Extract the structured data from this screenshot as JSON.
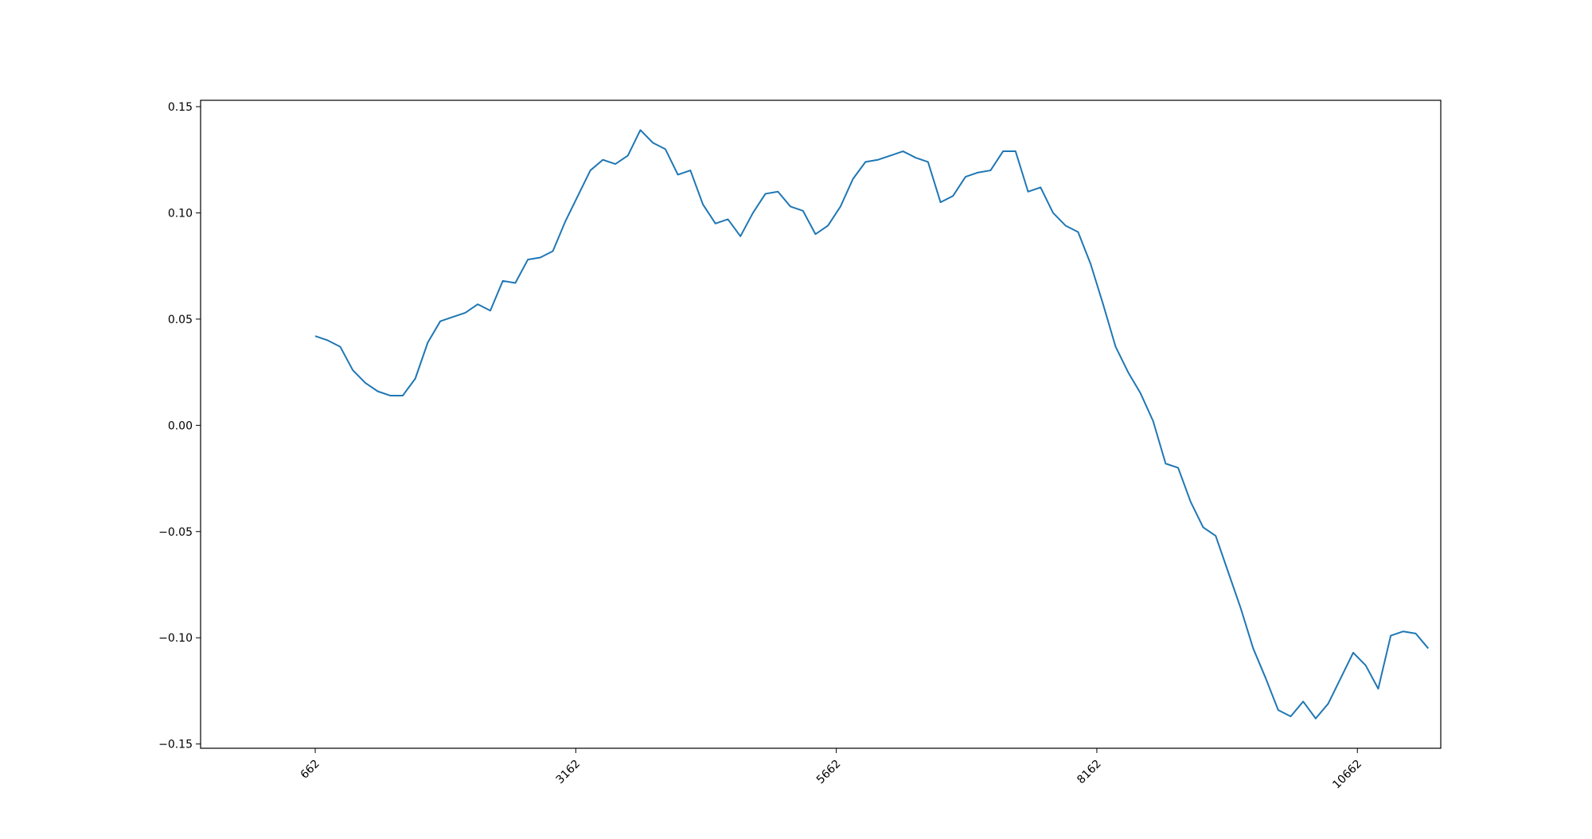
{
  "chart_data": {
    "type": "line",
    "title": "",
    "xlabel": "",
    "ylabel": "",
    "grid": false,
    "legend": "none",
    "xlim": [
      -1.1,
      10.8
    ],
    "ylim": [
      -0.152,
      0.153
    ],
    "xticks": {
      "positions": [
        0,
        2.5,
        5,
        7.5,
        10
      ],
      "labels": [
        "662",
        "3162",
        "5662",
        "8162",
        "10662"
      ]
    },
    "yticks": {
      "values": [
        0.15,
        0.1,
        0.05,
        0.0,
        -0.05,
        -0.1,
        -0.15
      ],
      "labels": [
        "0.15",
        "0.10",
        "0.05",
        "0.00",
        "−0.05",
        "−0.10",
        "−0.15"
      ]
    },
    "series": [
      {
        "color": "#1f77b4",
        "x": [
          0.0,
          0.12,
          0.24,
          0.36,
          0.48,
          0.6,
          0.72,
          0.84,
          0.96,
          1.08,
          1.2,
          1.32,
          1.44,
          1.56,
          1.68,
          1.8,
          1.92,
          2.04,
          2.16,
          2.28,
          2.4,
          2.52,
          2.64,
          2.76,
          2.88,
          3.0,
          3.12,
          3.24,
          3.36,
          3.48,
          3.6,
          3.72,
          3.84,
          3.96,
          4.08,
          4.2,
          4.32,
          4.44,
          4.56,
          4.68,
          4.8,
          4.92,
          5.04,
          5.16,
          5.28,
          5.4,
          5.52,
          5.64,
          5.76,
          5.88,
          6.0,
          6.12,
          6.24,
          6.36,
          6.48,
          6.6,
          6.72,
          6.84,
          6.96,
          7.08,
          7.2,
          7.32,
          7.44,
          7.56,
          7.68,
          7.8,
          7.92,
          8.04,
          8.16,
          8.28,
          8.4,
          8.52,
          8.64,
          8.76,
          8.88,
          9.0,
          9.12,
          9.24,
          9.36,
          9.48,
          9.6,
          9.72,
          9.84,
          9.96,
          10.08,
          10.2,
          10.32,
          10.44,
          10.56,
          10.68
        ],
        "y": [
          0.042,
          0.04,
          0.037,
          0.026,
          0.02,
          0.016,
          0.014,
          0.014,
          0.022,
          0.039,
          0.049,
          0.051,
          0.053,
          0.057,
          0.054,
          0.068,
          0.067,
          0.078,
          0.079,
          0.082,
          0.096,
          0.108,
          0.12,
          0.125,
          0.123,
          0.127,
          0.139,
          0.133,
          0.13,
          0.118,
          0.12,
          0.104,
          0.095,
          0.097,
          0.089,
          0.1,
          0.109,
          0.11,
          0.103,
          0.101,
          0.09,
          0.094,
          0.103,
          0.116,
          0.124,
          0.125,
          0.127,
          0.129,
          0.126,
          0.124,
          0.105,
          0.108,
          0.117,
          0.119,
          0.12,
          0.129,
          0.129,
          0.11,
          0.112,
          0.1,
          0.094,
          0.091,
          0.076,
          0.057,
          0.037,
          0.025,
          0.015,
          0.002,
          -0.018,
          -0.02,
          -0.036,
          -0.048,
          -0.052,
          -0.069,
          -0.086,
          -0.105,
          -0.119,
          -0.134,
          -0.137,
          -0.13,
          -0.138,
          -0.131,
          -0.119,
          -0.107,
          -0.113,
          -0.124,
          -0.099,
          -0.097,
          -0.098,
          -0.105
        ]
      }
    ]
  }
}
